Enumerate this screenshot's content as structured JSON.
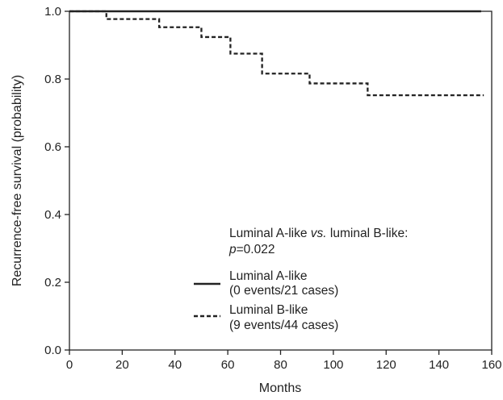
{
  "chart_data": {
    "type": "line",
    "subtype": "kaplan-meier step",
    "xlabel": "Months",
    "ylabel": "Recurrence-free survival (probability)",
    "xlim": [
      0,
      160
    ],
    "ylim": [
      0,
      1.0
    ],
    "x_ticks": [
      "0",
      "20",
      "40",
      "60",
      "80",
      "100",
      "120",
      "140",
      "160"
    ],
    "y_ticks": [
      "0.0",
      "0.2",
      "0.4",
      "0.6",
      "0.8",
      "1.0"
    ],
    "grid": false,
    "annotation": {
      "line1_a": "Luminal A-like ",
      "line1_vs": "vs.",
      "line1_b": " luminal B-like:",
      "line2_p": "p",
      "line2_val": "=0.022"
    },
    "series": [
      {
        "name": "Luminal A-like",
        "detail": "(0 events/21 cases)",
        "style": "solid",
        "color": "#222222",
        "x": [
          0,
          156
        ],
        "y": [
          1.0,
          1.0
        ]
      },
      {
        "name": "Luminal B-like",
        "detail": "(9 events/44 cases)",
        "style": "dashed",
        "color": "#222222",
        "x": [
          0,
          14,
          34,
          50,
          61,
          73,
          91,
          113,
          157
        ],
        "y": [
          1.0,
          0.977,
          0.953,
          0.924,
          0.875,
          0.816,
          0.787,
          0.752,
          0.752
        ]
      }
    ]
  }
}
